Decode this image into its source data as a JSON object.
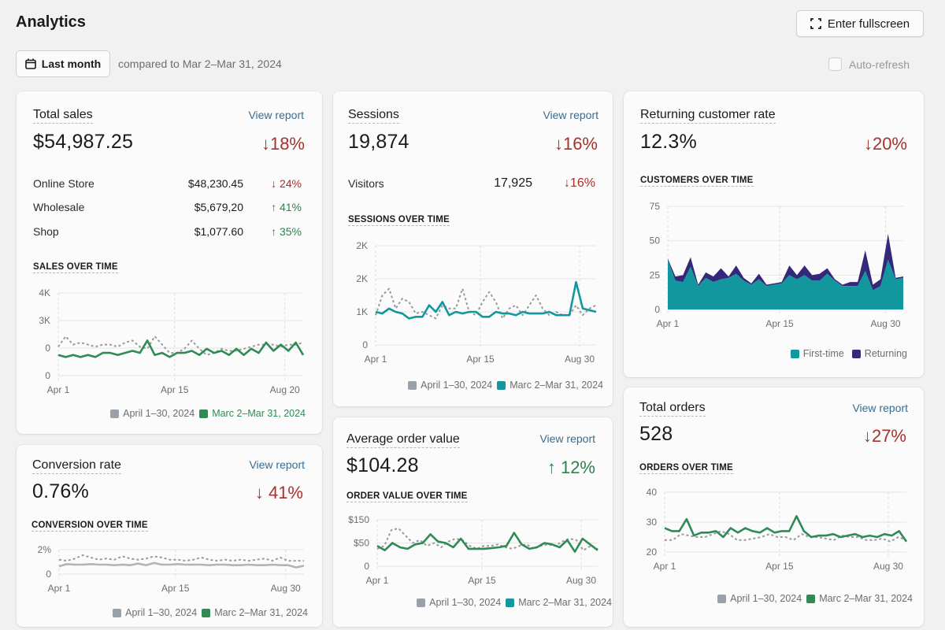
{
  "header": {
    "title": "Analytics",
    "fullscreen_label": "Enter fullscreen",
    "date_range_label": "Last month",
    "compare_text": "compared to Mar 2–Mar 31, 2024",
    "auto_refresh_label": "Auto-refresh",
    "auto_refresh_checked": false
  },
  "colors": {
    "green": "#2f8a55",
    "teal": "#12979f",
    "navy": "#33287a",
    "gray_dashed": "#9a9a9d",
    "down_red": "#a5322c",
    "up_green": "#2f7f4f",
    "link_blue": "#3a6c8f"
  },
  "cards": {
    "total_sales": {
      "title": "Total sales",
      "view_report": "View report",
      "value": "$54,987.25",
      "delta": "↓18%",
      "rows": [
        {
          "label": "Online Store",
          "value": "$48,230.45",
          "delta": "↓ 24%",
          "direction": "down"
        },
        {
          "label": "Wholesale",
          "value": "$5,679,20",
          "delta": "↑ 41%",
          "direction": "up"
        },
        {
          "label": "Shop",
          "value": "$1,077.60",
          "delta": "↑ 35%",
          "direction": "up"
        }
      ],
      "chart_label": "SALES OVER TIME",
      "legend": [
        "April 1–30, 2024",
        "Marc 2–Mar 31, 2024"
      ]
    },
    "sessions": {
      "title": "Sessions",
      "view_report": "View report",
      "value": "19,874",
      "delta": "↓16%",
      "rows": [
        {
          "label": "Visitors",
          "value": "17,925",
          "delta": "↓16%",
          "direction": "down"
        }
      ],
      "chart_label": "SESSIONS OVER TIME",
      "legend": [
        "April 1–30, 2024",
        "Marc 2–Mar 31, 2024"
      ]
    },
    "returning": {
      "title": "Returning customer rate",
      "value": "12.3%",
      "delta": "↓20%",
      "chart_label": "CUSTOMERS OVER TIME",
      "legend": [
        "First-time",
        "Returning"
      ]
    },
    "conversion": {
      "title": "Conversion rate",
      "view_report": "View report",
      "value": "0.76%",
      "delta": "↓ 41%",
      "chart_label": "CONVERSION OVER TIME",
      "legend": [
        "April 1–30, 2024",
        "Marc 2–Mar 31, 2024"
      ]
    },
    "aov": {
      "title": "Average order value",
      "view_report": "View report",
      "value": "$104.28",
      "delta": "↑ 12%",
      "chart_label": "ORDER VALUE OVER TIME",
      "legend": [
        "April 1–30, 2024",
        "Marc 2–Mar 31, 2024"
      ]
    },
    "orders": {
      "title": "Total orders",
      "view_report": "View report",
      "value": "528",
      "delta": "↓27%",
      "chart_label": "ORDERS OVER TIME",
      "legend": [
        "April 1–30, 2024",
        "Marc 2–Mar 31, 2024"
      ]
    }
  },
  "chart_data": [
    {
      "id": "sales",
      "type": "line",
      "title": "SALES OVER TIME",
      "y_tick_labels": [
        "4K",
        "3K",
        "0",
        "0"
      ],
      "x_tick_labels": [
        "Apr 1",
        "Apr 15",
        "Aug 20"
      ],
      "ylim": [
        0,
        4
      ],
      "grid": true,
      "legend_position": "bottom-right",
      "series": [
        {
          "name": "April 1–30, 2024",
          "style": "dashed",
          "color": "#9a9a9d",
          "values": [
            1.4,
            1.9,
            1.5,
            1.6,
            1.5,
            1.4,
            1.5,
            1.5,
            1.4,
            1.6,
            1.7,
            1.4,
            1.3,
            1.9,
            1.5,
            1.1,
            1.1,
            1.3,
            1.7,
            1.3,
            1.0,
            1.1,
            1.3,
            1.2,
            1.2,
            1.3,
            1.4,
            1.5,
            1.5,
            1.5,
            1.4,
            1.5,
            1.5,
            1.6
          ]
        },
        {
          "name": "Marc 2–Mar 31, 2024",
          "style": "solid",
          "color": "#2f8a55",
          "values": [
            1.0,
            0.9,
            1.0,
            0.9,
            1.0,
            0.9,
            1.1,
            1.1,
            1.0,
            1.1,
            1.2,
            1.1,
            1.7,
            1.0,
            1.1,
            0.9,
            1.1,
            1.1,
            1.2,
            1.0,
            1.3,
            1.1,
            1.2,
            1.0,
            1.3,
            1.0,
            1.3,
            1.1,
            1.6,
            1.2,
            1.5,
            1.2,
            1.6,
            1.0
          ]
        }
      ]
    },
    {
      "id": "sessions",
      "type": "line",
      "title": "SESSIONS OVER TIME",
      "y_tick_labels": [
        "2K",
        "2K",
        "1K",
        "0"
      ],
      "x_tick_labels": [
        "Apr 1",
        "Apr 15",
        "Aug 30"
      ],
      "ylim": [
        0,
        3000
      ],
      "grid": true,
      "legend_position": "bottom-right",
      "series": [
        {
          "name": "April 1–30, 2024",
          "style": "dashed",
          "color": "#9a9a9d",
          "values": [
            900,
            1500,
            1700,
            1100,
            1400,
            1300,
            950,
            1000,
            900,
            800,
            1200,
            1100,
            1100,
            1700,
            1000,
            900,
            1300,
            1600,
            1300,
            800,
            1100,
            1200,
            900,
            1200,
            1500,
            1100,
            900,
            1000,
            900,
            900,
            1200,
            900,
            1100,
            1200
          ]
        },
        {
          "name": "Marc 2–Mar 31, 2024",
          "style": "solid",
          "color": "#12979f",
          "values": [
            1000,
            950,
            1100,
            1000,
            950,
            800,
            850,
            850,
            1200,
            1000,
            1300,
            900,
            1000,
            950,
            1000,
            1000,
            850,
            850,
            1000,
            950,
            950,
            900,
            1000,
            950,
            950,
            950,
            1000,
            900,
            900,
            900,
            1900,
            1100,
            1050,
            1000
          ]
        }
      ]
    },
    {
      "id": "customers",
      "type": "area",
      "title": "CUSTOMERS OVER TIME",
      "y_tick_labels": [
        "75",
        "50",
        "25",
        "0"
      ],
      "x_tick_labels": [
        "Apr 1",
        "Apr 15",
        "Aug 30"
      ],
      "ylim": [
        0,
        75
      ],
      "grid": true,
      "stacked": true,
      "legend_position": "bottom-right",
      "series": [
        {
          "name": "First-time",
          "color": "#12979f",
          "values": [
            36,
            21,
            20,
            31,
            17,
            23,
            20,
            22,
            23,
            26,
            21,
            18,
            22,
            17,
            18,
            19,
            25,
            22,
            25,
            21,
            21,
            26,
            21,
            17,
            17,
            17,
            28,
            14,
            17,
            36,
            22,
            23
          ]
        },
        {
          "name": "Returning",
          "color": "#33287a",
          "values": [
            1,
            3,
            5,
            7,
            1,
            4,
            4,
            8,
            1,
            6,
            2,
            1,
            4,
            1,
            1,
            1,
            7,
            3,
            7,
            4,
            5,
            4,
            1,
            1,
            3,
            3,
            15,
            4,
            5,
            19,
            1,
            1
          ]
        }
      ]
    },
    {
      "id": "conversion",
      "type": "line",
      "title": "CONVERSION OVER TIME",
      "y_tick_labels": [
        "2%",
        "0"
      ],
      "x_tick_labels": [
        "Apr 1",
        "Apr 15",
        "Aug 30"
      ],
      "ylim": [
        0,
        2.2
      ],
      "grid": true,
      "legend_position": "bottom-right",
      "series": [
        {
          "name": "April 1–30, 2024",
          "style": "dashed",
          "color": "#9a9a9d",
          "values": [
            1.3,
            1.2,
            1.4,
            1.7,
            1.5,
            1.3,
            1.4,
            1.3,
            1.6,
            1.4,
            1.3,
            1.4,
            1.6,
            1.5,
            1.3,
            1.3,
            1.2,
            1.3,
            1.5,
            1.3,
            1.2,
            1.3,
            1.2,
            1.3,
            1.2,
            1.3,
            1.4,
            1.2,
            1.5,
            1.2,
            1.2,
            1.2
          ]
        },
        {
          "name": "Marc 2–Mar 31, 2024",
          "style": "solid",
          "color": "#b4b4b8",
          "values": [
            0.7,
            0.9,
            0.85,
            0.85,
            0.9,
            0.85,
            0.85,
            0.8,
            0.85,
            0.8,
            0.95,
            0.8,
            1.0,
            0.85,
            0.85,
            0.9,
            0.85,
            0.85,
            0.85,
            0.8,
            0.85,
            0.85,
            0.8,
            0.8,
            0.85,
            0.8,
            0.8,
            0.85,
            0.8,
            0.8,
            0.6,
            0.75
          ]
        }
      ]
    },
    {
      "id": "aov",
      "type": "line",
      "title": "ORDER VALUE OVER TIME",
      "y_tick_labels": [
        "$150",
        "$50",
        "0"
      ],
      "x_tick_labels": [
        "Apr 1",
        "Apr 15",
        "Aug 30"
      ],
      "ylim": [
        0,
        160
      ],
      "grid": true,
      "legend_position": "bottom-right",
      "series": [
        {
          "name": "April 1–30, 2024",
          "style": "dashed",
          "color": "#9a9a9d",
          "values": [
            60,
            70,
            125,
            130,
            105,
            80,
            90,
            70,
            80,
            65,
            85,
            95,
            90,
            70,
            60,
            70,
            70,
            75,
            65,
            60,
            70,
            75,
            60,
            70,
            75,
            70,
            85,
            95,
            90,
            55,
            70,
            60
          ]
        },
        {
          "name": "Marc 2–Mar 31, 2024",
          "style": "solid",
          "color": "#2f8a55",
          "values": [
            70,
            55,
            80,
            65,
            60,
            75,
            80,
            110,
            85,
            80,
            65,
            95,
            60,
            60,
            60,
            62,
            65,
            70,
            115,
            75,
            60,
            65,
            80,
            75,
            65,
            90,
            50,
            95,
            75,
            55
          ]
        }
      ]
    },
    {
      "id": "orders",
      "type": "line",
      "title": "ORDERS OVER TIME",
      "y_tick_labels": [
        "40",
        "30",
        "20"
      ],
      "x_tick_labels": [
        "Apr 1",
        "Apr 15",
        "Aug 30"
      ],
      "ylim": [
        20,
        40
      ],
      "grid": true,
      "legend_position": "bottom-right",
      "series": [
        {
          "name": "April 1–30, 2024",
          "style": "dashed",
          "color": "#9a9a9d",
          "values": [
            24,
            24,
            26,
            25.5,
            25,
            25,
            26,
            27,
            26,
            24,
            24,
            24.5,
            25,
            26,
            25,
            25,
            24,
            26,
            25,
            25,
            24.5,
            24,
            25.5,
            25,
            25,
            24,
            24,
            24.5,
            23.5,
            25,
            24
          ]
        },
        {
          "name": "Marc 2–Mar 31, 2024",
          "style": "solid",
          "color": "#2f8a55",
          "values": [
            28,
            27,
            27,
            31,
            25.5,
            26.5,
            26.5,
            27,
            25,
            28,
            26.5,
            28,
            27,
            26.5,
            28,
            26.5,
            27,
            27,
            32,
            27,
            25,
            25.5,
            25.5,
            26,
            25,
            25.5,
            26,
            25,
            25.5,
            25,
            26,
            25.5,
            27,
            23.5
          ]
        }
      ]
    }
  ]
}
